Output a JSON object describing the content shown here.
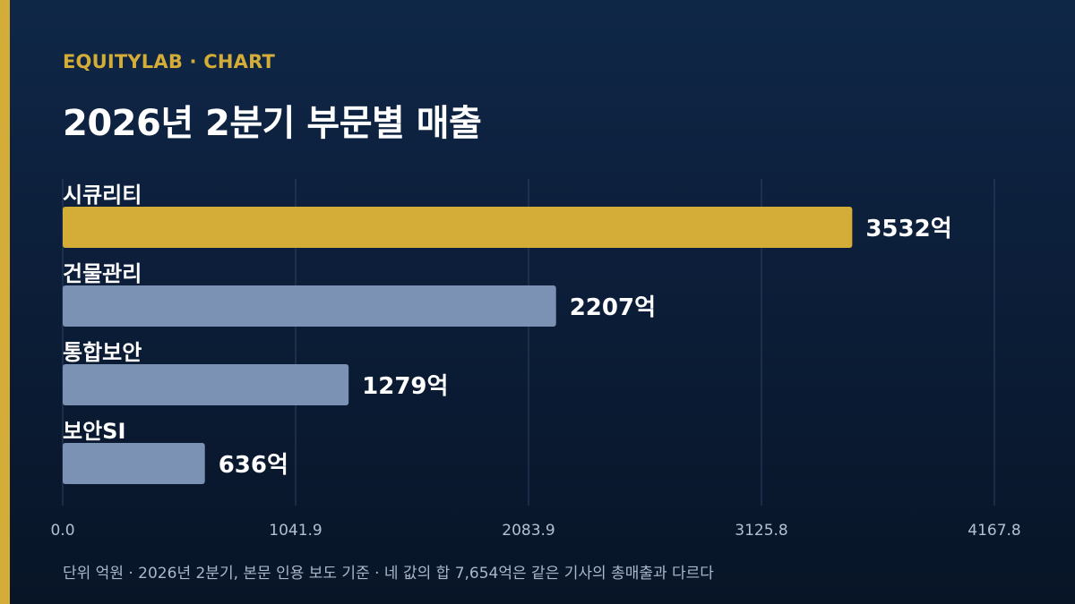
{
  "header": {
    "brand": "EQUITYLAB · CHART",
    "title": "2026년 2분기 부문별 매출"
  },
  "footnote": "단위 억원 · 2026년 2분기, 본문 인용 보도 기준 · 네 값의 합 7,654억은 같은 기사의 총매출과 다르다",
  "colors": {
    "accent": "#d4ad38",
    "bar_default": "#7b92b4",
    "background": "#0f2747",
    "grid": "#2c4263",
    "tick_text": "#b3c0d3"
  },
  "chart_data": {
    "type": "bar",
    "orientation": "horizontal",
    "categories": [
      "시큐리티",
      "건물관리",
      "통합보안",
      "보안SI"
    ],
    "values": [
      3532,
      2207,
      1279,
      636
    ],
    "value_labels": [
      "3532억",
      "2207억",
      "1279억",
      "636억"
    ],
    "highlight_index": 0,
    "xlim": [
      0,
      4167.8
    ],
    "x_ticks": [
      "0.0",
      "1041.9",
      "2083.9",
      "3125.8",
      "4167.8"
    ],
    "grid": true,
    "xlabel": "",
    "ylabel": ""
  }
}
